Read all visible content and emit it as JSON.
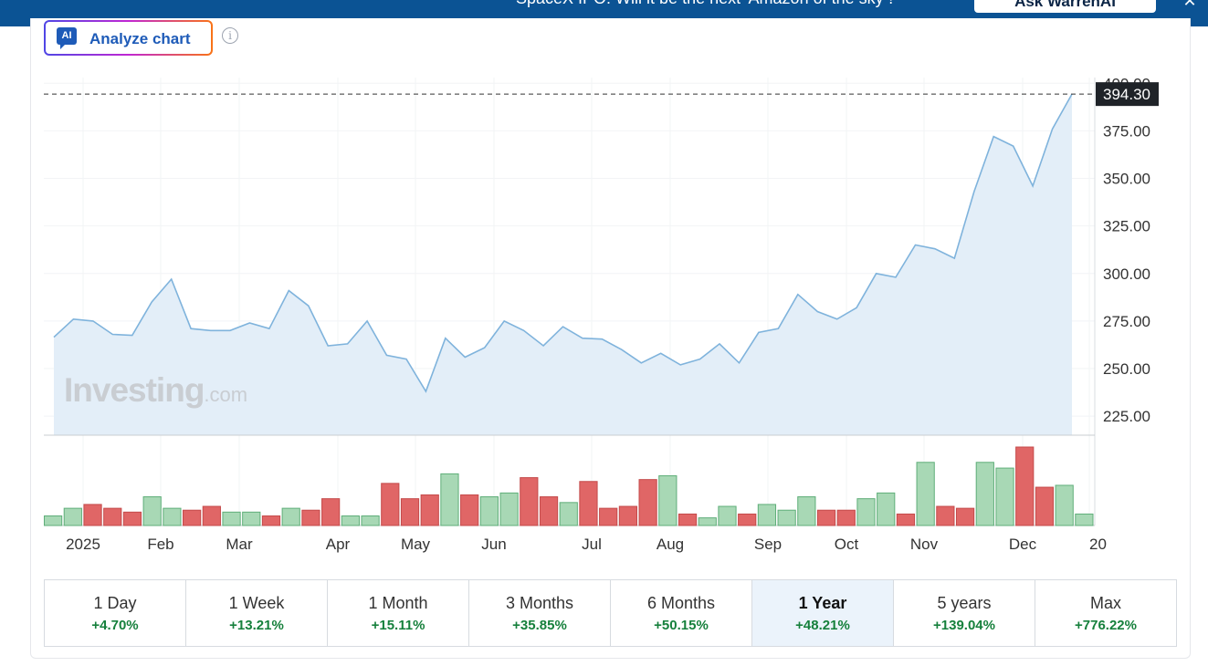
{
  "banner": {
    "text": "SpaceX IPO: Will it be the next 'Amazon of the sky'?",
    "button_label": "Ask WarrenAI",
    "close_symbol": "✕"
  },
  "toolbar": {
    "analyze_icon_text": "AI",
    "analyze_label": "Analyze chart",
    "info_symbol": "i"
  },
  "watermark": {
    "brand": "Investing",
    "domain": ".com"
  },
  "colors": {
    "line": "#7fb3dc",
    "area": "#e3eef8",
    "volume_up": "#a8d8b5",
    "volume_down": "#e06666",
    "change_positive": "#16803c",
    "banner": "#0b5394"
  },
  "chart_data": {
    "type": "area",
    "xlabel": "",
    "ylabel": "",
    "ylim": [
      215,
      403
    ],
    "y_ticks": [
      "225.00",
      "250.00",
      "275.00",
      "300.00",
      "325.00",
      "350.00",
      "375.00",
      "400.00"
    ],
    "last_price_label": "394.30",
    "last_price": 394.3,
    "x_tick_labels": [
      "2025",
      "Feb",
      "Mar",
      "Apr",
      "May",
      "Jun",
      "Jul",
      "Aug",
      "Sep",
      "Oct",
      "Nov",
      "Dec",
      "20"
    ],
    "grid": true,
    "series": [
      {
        "values": [
          266.5,
          276,
          275,
          268,
          267.5,
          285,
          297,
          271,
          270,
          270,
          274,
          271,
          291,
          283,
          262,
          263,
          275,
          257,
          255,
          238,
          266,
          256,
          261,
          275,
          270,
          262,
          272,
          266,
          265.5,
          260,
          253,
          258,
          252,
          255,
          263,
          253,
          269,
          271,
          289,
          280,
          276,
          282,
          300,
          298,
          315,
          313,
          308,
          343,
          372,
          367,
          346,
          376,
          394.3
        ]
      }
    ],
    "volume": {
      "values": [
        5,
        9,
        11,
        9,
        7,
        15,
        9,
        8,
        10,
        7,
        7,
        5,
        9,
        8,
        14,
        5,
        5,
        22,
        14,
        16,
        27,
        16,
        15,
        17,
        25,
        15,
        12,
        23,
        9,
        10,
        24,
        26,
        6,
        4,
        10,
        6,
        11,
        8,
        15,
        8,
        8,
        14,
        17,
        6,
        33,
        10,
        9,
        33,
        30,
        41,
        20,
        21,
        6
      ],
      "direction": [
        "up",
        "up",
        "down",
        "down",
        "down",
        "up",
        "up",
        "down",
        "down",
        "up",
        "up",
        "down",
        "up",
        "down",
        "down",
        "up",
        "up",
        "down",
        "down",
        "down",
        "up",
        "down",
        "up",
        "up",
        "down",
        "down",
        "up",
        "down",
        "down",
        "down",
        "down",
        "up",
        "down",
        "up",
        "up",
        "down",
        "up",
        "up",
        "up",
        "down",
        "down",
        "up",
        "up",
        "down",
        "up",
        "down",
        "down",
        "up",
        "up",
        "down",
        "down",
        "up",
        "up"
      ]
    }
  },
  "periods": [
    {
      "label": "1 Day",
      "change": "+4.70%",
      "active": false
    },
    {
      "label": "1 Week",
      "change": "+13.21%",
      "active": false
    },
    {
      "label": "1 Month",
      "change": "+15.11%",
      "active": false
    },
    {
      "label": "3 Months",
      "change": "+35.85%",
      "active": false
    },
    {
      "label": "6 Months",
      "change": "+50.15%",
      "active": false
    },
    {
      "label": "1 Year",
      "change": "+48.21%",
      "active": true
    },
    {
      "label": "5 years",
      "change": "+139.04%",
      "active": false
    },
    {
      "label": "Max",
      "change": "+776.22%",
      "active": false
    }
  ]
}
